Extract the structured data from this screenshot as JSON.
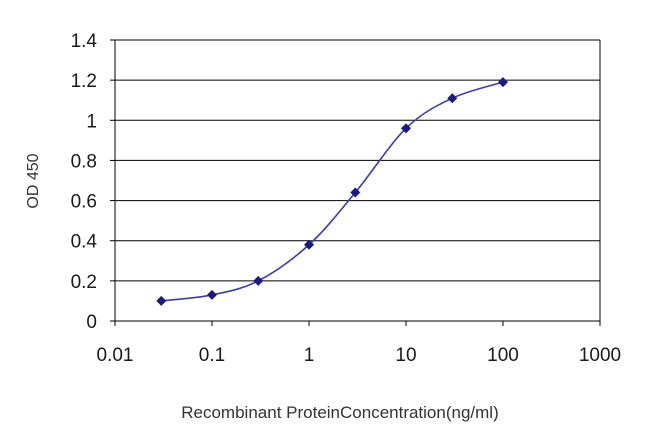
{
  "chart_data": {
    "type": "line",
    "title": "",
    "xlabel": "Recombinant ProteinConcentration(ng/ml)",
    "ylabel": "OD 450",
    "x_scale": "log",
    "xlim": [
      0.01,
      1000
    ],
    "ylim": [
      0,
      1.4
    ],
    "x_ticks": [
      "0.01",
      "0.1",
      "1",
      "10",
      "100",
      "1000"
    ],
    "y_ticks": [
      "0",
      "0.2",
      "0.4",
      "0.6",
      "0.8",
      "1",
      "1.2",
      "1.4"
    ],
    "grid": "horizontal",
    "legend": "none",
    "series": [
      {
        "x": [
          0.03,
          0.1,
          0.3,
          1,
          3,
          10,
          30,
          100
        ],
        "y": [
          0.1,
          0.13,
          0.2,
          0.38,
          0.64,
          0.96,
          1.11,
          1.19
        ]
      }
    ],
    "colors": {
      "line": "#3b3bb3",
      "marker": "#1a1a80",
      "grid": "#000000",
      "axis": "#000000"
    }
  }
}
